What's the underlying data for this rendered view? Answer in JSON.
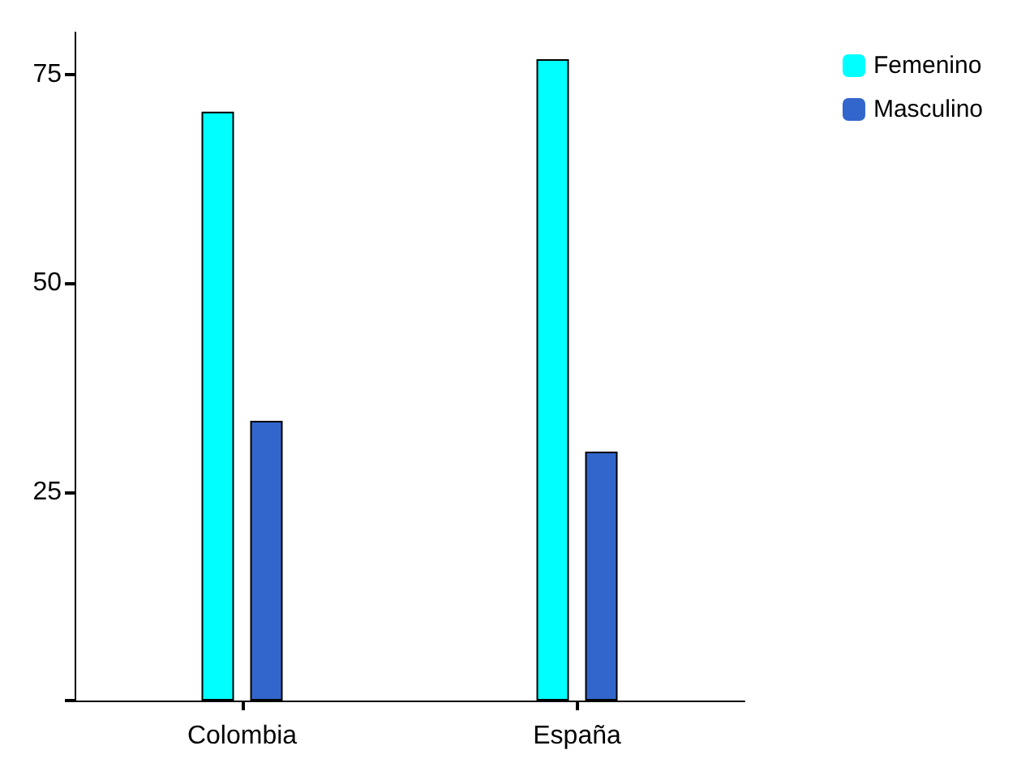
{
  "chart_data": {
    "type": "bar",
    "categories": [
      "Colombia",
      "España"
    ],
    "series": [
      {
        "name": "Femenino",
        "color": "#00ffff",
        "values": [
          70.5,
          76.8
        ]
      },
      {
        "name": "Masculino",
        "color": "#3366cc",
        "values": [
          33.5,
          29.8
        ]
      }
    ],
    "ylim": [
      0,
      80
    ],
    "yticks": [
      {
        "value": 0,
        "label": null
      },
      25,
      50,
      75
    ],
    "grid": false,
    "legend": "top right"
  }
}
